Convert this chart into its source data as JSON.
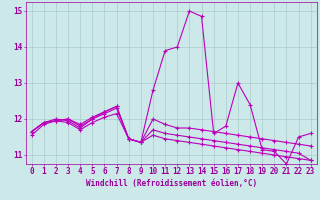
{
  "x": [
    0,
    1,
    2,
    3,
    4,
    5,
    6,
    7,
    8,
    9,
    10,
    11,
    12,
    13,
    14,
    15,
    16,
    17,
    18,
    19,
    20,
    21,
    22,
    23
  ],
  "lines": [
    [
      11.65,
      11.9,
      11.95,
      12.0,
      11.85,
      12.05,
      12.2,
      12.35,
      11.45,
      11.35,
      12.8,
      13.9,
      14.0,
      15.0,
      14.85,
      11.6,
      11.8,
      13.0,
      12.4,
      11.15,
      11.1,
      10.75,
      11.5,
      11.6
    ],
    [
      11.65,
      11.9,
      11.95,
      11.9,
      11.7,
      11.9,
      12.05,
      12.15,
      11.45,
      11.35,
      12.0,
      11.85,
      11.75,
      11.75,
      11.7,
      11.65,
      11.6,
      11.55,
      11.5,
      11.45,
      11.4,
      11.35,
      11.3,
      11.25
    ],
    [
      11.65,
      11.9,
      12.0,
      11.95,
      11.75,
      12.0,
      12.2,
      12.35,
      11.45,
      11.35,
      11.7,
      11.6,
      11.55,
      11.5,
      11.45,
      11.4,
      11.35,
      11.3,
      11.25,
      11.2,
      11.15,
      11.1,
      11.05,
      10.85
    ],
    [
      11.55,
      11.85,
      11.95,
      12.0,
      11.8,
      12.0,
      12.15,
      12.3,
      11.45,
      11.35,
      11.55,
      11.45,
      11.4,
      11.35,
      11.3,
      11.25,
      11.2,
      11.15,
      11.1,
      11.05,
      11.0,
      10.95,
      10.9,
      10.85
    ]
  ],
  "line_color": "#bb00bb",
  "marker": "+",
  "markersize": 3,
  "linewidth": 0.8,
  "xlim": [
    -0.5,
    23.5
  ],
  "ylim": [
    10.75,
    15.25
  ],
  "yticks": [
    11,
    12,
    13,
    14,
    15
  ],
  "xticks": [
    0,
    1,
    2,
    3,
    4,
    5,
    6,
    7,
    8,
    9,
    10,
    11,
    12,
    13,
    14,
    15,
    16,
    17,
    18,
    19,
    20,
    21,
    22,
    23
  ],
  "xlabel": "Windchill (Refroidissement éolien,°C)",
  "background_color": "#cce8e8",
  "grid_color": "#aacccc",
  "label_fontsize": 5.5,
  "tick_fontsize": 5.5,
  "axis_color": "#990099"
}
